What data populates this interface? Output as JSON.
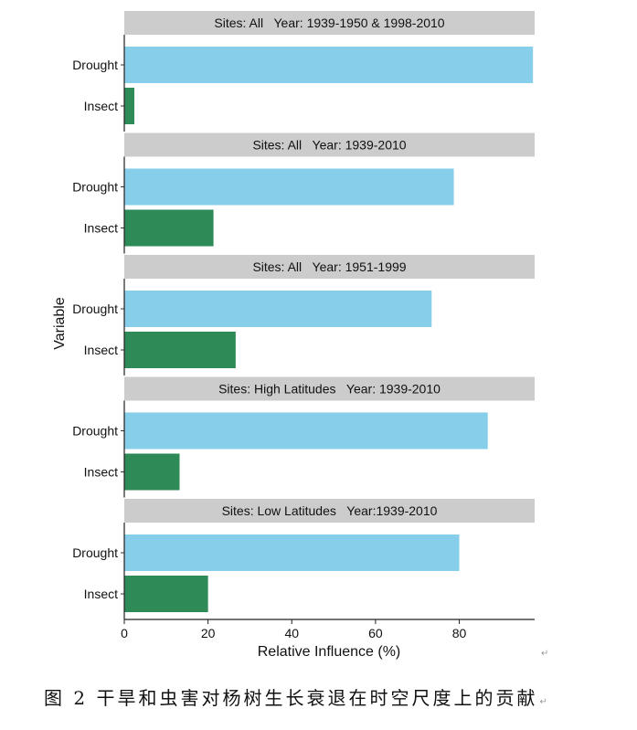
{
  "chart_data": {
    "type": "bar",
    "orientation": "horizontal",
    "categories": [
      "Drought",
      "Insect"
    ],
    "xlabel": "Relative Influence (%)",
    "ylabel": "Variable",
    "xlim": [
      0,
      98
    ],
    "xticks": [
      0,
      20,
      40,
      60,
      80
    ],
    "colors": {
      "Drought": "#87ceeb",
      "Insect": "#2e8b57",
      "strip": "#cccccc"
    },
    "facets": [
      {
        "title": "Sites: All   Year: 1939-1950 & 1998-2010",
        "values": [
          97.6,
          2.4
        ]
      },
      {
        "title": "Sites: All   Year: 1939-2010",
        "values": [
          78.7,
          21.3
        ]
      },
      {
        "title": "Sites: All   Year: 1951-1999",
        "values": [
          73.4,
          26.6
        ]
      },
      {
        "title": "Sites: High Latitudes   Year: 1939-2010",
        "values": [
          86.8,
          13.2
        ]
      },
      {
        "title": "Sites: Low Latitudes   Year:1939-2010",
        "values": [
          80.0,
          20.0
        ]
      }
    ]
  },
  "caption": "图 2  干旱和虫害对杨树生长衰退在时空尺度上的贡献",
  "return_mark": "↵"
}
